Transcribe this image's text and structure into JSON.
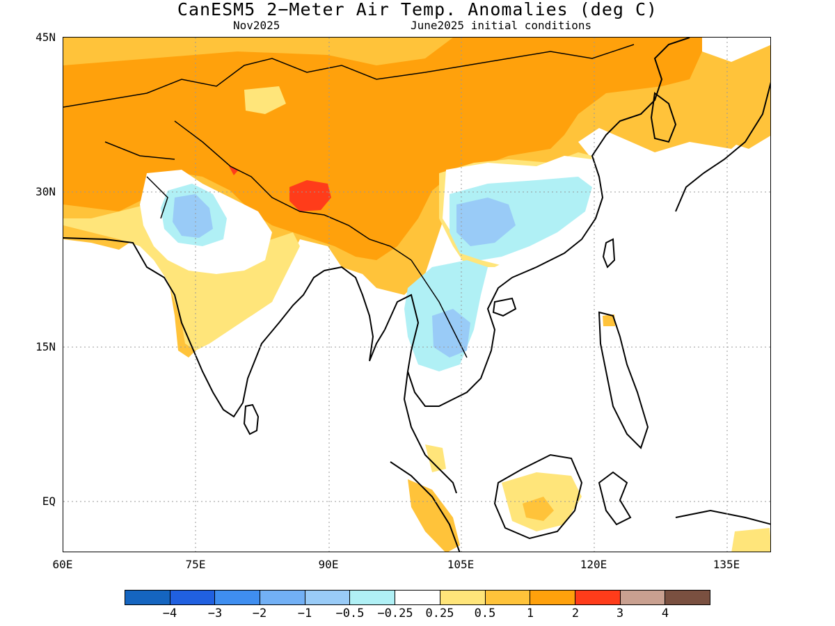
{
  "header": {
    "title": "CanESM5 2−Meter Air Temp. Anomalies (deg C)",
    "left_subtitle": "Nov2025",
    "right_subtitle": "June2025 initial conditions"
  },
  "map": {
    "lat_range": [
      -5,
      45
    ],
    "lon_range": [
      60,
      140
    ],
    "y_ticks": [
      "45N",
      "30N",
      "15N",
      "EQ"
    ],
    "x_ticks": [
      "60E",
      "75E",
      "90E",
      "105E",
      "120E",
      "135E"
    ],
    "gridlines": true
  },
  "colorbar": {
    "colors": [
      "#1565c0",
      "#2060e0",
      "#3f8ef0",
      "#72b0f5",
      "#99cbf7",
      "#b0f0f5",
      "#ffffff",
      "#ffe57a",
      "#ffc33a",
      "#ffa10c",
      "#ff3c1a",
      "#c9a090",
      "#7a5040"
    ],
    "labels": [
      "−4",
      "−3",
      "−2",
      "−1",
      "−0.5",
      "−0.25",
      "0.25",
      "0.5",
      "1",
      "2",
      "3",
      "4"
    ]
  }
}
